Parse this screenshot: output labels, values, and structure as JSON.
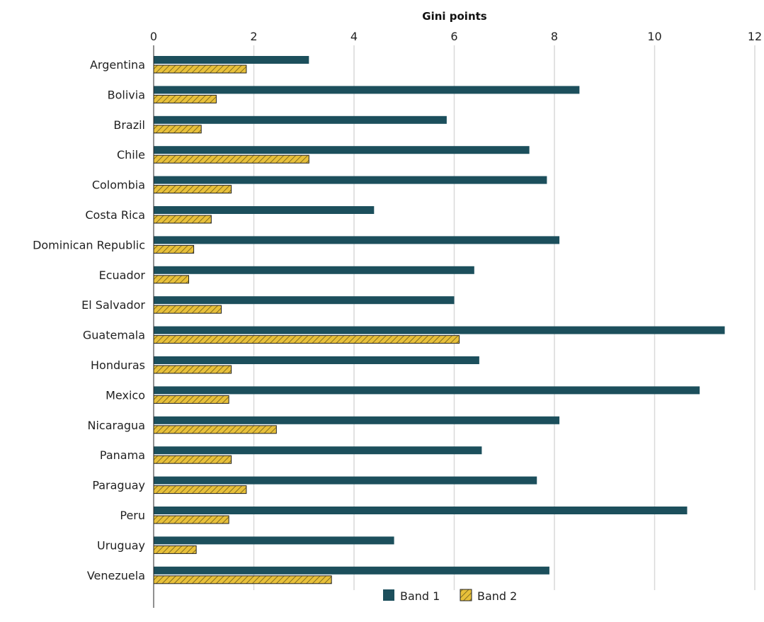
{
  "chart_data": {
    "type": "bar",
    "orientation": "horizontal",
    "xlabel": "Gini points",
    "ylabel": "",
    "xlim": [
      0,
      12
    ],
    "xticks": [
      0,
      2,
      4,
      6,
      8,
      10,
      12
    ],
    "grid": true,
    "legend_position": "bottom",
    "categories": [
      "Argentina",
      "Bolivia",
      "Brazil",
      "Chile",
      "Colombia",
      "Costa Rica",
      "Dominican Republic",
      "Ecuador",
      "El Salvador",
      "Guatemala",
      "Honduras",
      "Mexico",
      "Nicaragua",
      "Panama",
      "Paraguay",
      "Peru",
      "Uruguay",
      "Venezuela"
    ],
    "series": [
      {
        "name": "Band 1",
        "color": "#1c4f5c",
        "pattern": "solid",
        "values": [
          3.1,
          8.5,
          5.85,
          7.5,
          7.85,
          4.4,
          8.1,
          6.4,
          6.0,
          11.4,
          6.5,
          10.9,
          8.1,
          6.55,
          7.65,
          10.65,
          4.8,
          7.9
        ]
      },
      {
        "name": "Band 2",
        "color": "#e8c03a",
        "pattern": "hatched",
        "values": [
          1.85,
          1.25,
          0.95,
          3.1,
          1.55,
          1.15,
          0.8,
          0.7,
          1.35,
          6.1,
          1.55,
          1.5,
          2.45,
          1.55,
          1.85,
          1.5,
          0.85,
          3.55
        ]
      }
    ]
  }
}
